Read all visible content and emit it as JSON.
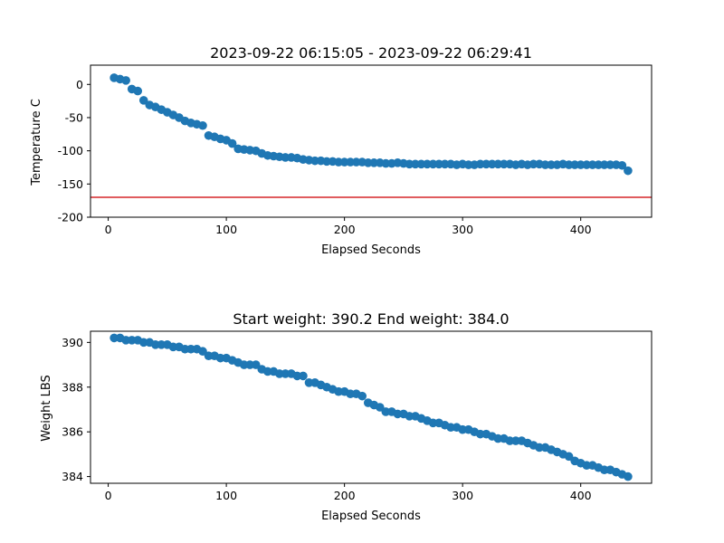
{
  "chart_data": [
    {
      "type": "scatter",
      "title": "2023-09-22 06:15:05 - 2023-09-22 06:29:41",
      "xlabel": "Elapsed Seconds",
      "ylabel": "Temperature C",
      "xlim": [
        -15,
        460
      ],
      "ylim": [
        -200,
        29
      ],
      "xticks": [
        0,
        100,
        200,
        300,
        400
      ],
      "yticks": [
        0,
        -50,
        -100,
        -150,
        -200
      ],
      "grid": false,
      "marker_color": "#1f77b4",
      "hline": {
        "y": -170,
        "color": "#d62728"
      },
      "x": [
        5,
        10,
        15,
        20,
        25,
        30,
        35,
        40,
        45,
        50,
        55,
        60,
        65,
        70,
        75,
        80,
        85,
        90,
        95,
        100,
        105,
        110,
        115,
        120,
        125,
        130,
        135,
        140,
        145,
        150,
        155,
        160,
        165,
        170,
        175,
        180,
        185,
        190,
        195,
        200,
        205,
        210,
        215,
        220,
        225,
        230,
        235,
        240,
        245,
        250,
        255,
        260,
        265,
        270,
        275,
        280,
        285,
        290,
        295,
        300,
        305,
        310,
        315,
        320,
        325,
        330,
        335,
        340,
        345,
        350,
        355,
        360,
        365,
        370,
        375,
        380,
        385,
        390,
        395,
        400,
        405,
        410,
        415,
        420,
        425,
        430,
        435,
        440
      ],
      "y": [
        10,
        8,
        6,
        -7,
        -10,
        -24,
        -31,
        -34,
        -38,
        -42,
        -46,
        -50,
        -55,
        -58,
        -60,
        -62,
        -77,
        -79,
        -82,
        -84,
        -89,
        -97,
        -98,
        -99,
        -100,
        -104,
        -107,
        -108,
        -109,
        -110,
        -110,
        -111,
        -113,
        -114,
        -115,
        -115,
        -116,
        -116,
        -117,
        -117,
        -117,
        -117,
        -117,
        -118,
        -118,
        -118,
        -119,
        -119,
        -118,
        -119,
        -120,
        -120,
        -120,
        -120,
        -120,
        -120,
        -120,
        -120,
        -121,
        -120,
        -121,
        -121,
        -120,
        -120,
        -120,
        -120,
        -120,
        -120,
        -121,
        -120,
        -121,
        -120,
        -120,
        -121,
        -121,
        -121,
        -120,
        -121,
        -121,
        -121,
        -121,
        -121,
        -121,
        -121,
        -121,
        -121,
        -122,
        -130
      ]
    },
    {
      "type": "scatter",
      "title": "Start weight: 390.2 End weight: 384.0",
      "xlabel": "Elapsed Seconds",
      "ylabel": "Weight LBS",
      "xlim": [
        -15,
        460
      ],
      "ylim": [
        383.7,
        390.5
      ],
      "xticks": [
        0,
        100,
        200,
        300,
        400
      ],
      "yticks": [
        384,
        386,
        388,
        390
      ],
      "grid": false,
      "marker_color": "#1f77b4",
      "x": [
        5,
        10,
        15,
        20,
        25,
        30,
        35,
        40,
        45,
        50,
        55,
        60,
        65,
        70,
        75,
        80,
        85,
        90,
        95,
        100,
        105,
        110,
        115,
        120,
        125,
        130,
        135,
        140,
        145,
        150,
        155,
        160,
        165,
        170,
        175,
        180,
        185,
        190,
        195,
        200,
        205,
        210,
        215,
        220,
        225,
        230,
        235,
        240,
        245,
        250,
        255,
        260,
        265,
        270,
        275,
        280,
        285,
        290,
        295,
        300,
        305,
        310,
        315,
        320,
        325,
        330,
        335,
        340,
        345,
        350,
        355,
        360,
        365,
        370,
        375,
        380,
        385,
        390,
        395,
        400,
        405,
        410,
        415,
        420,
        425,
        430,
        435,
        440
      ],
      "y": [
        390.2,
        390.2,
        390.1,
        390.1,
        390.1,
        390.0,
        390.0,
        389.9,
        389.9,
        389.9,
        389.8,
        389.8,
        389.7,
        389.7,
        389.7,
        389.6,
        389.4,
        389.4,
        389.3,
        389.3,
        389.2,
        389.1,
        389.0,
        389.0,
        389.0,
        388.8,
        388.7,
        388.7,
        388.6,
        388.6,
        388.6,
        388.5,
        388.5,
        388.2,
        388.2,
        388.1,
        388.0,
        387.9,
        387.8,
        387.8,
        387.7,
        387.7,
        387.6,
        387.3,
        387.2,
        387.1,
        386.9,
        386.9,
        386.8,
        386.8,
        386.7,
        386.7,
        386.6,
        386.5,
        386.4,
        386.4,
        386.3,
        386.2,
        386.2,
        386.1,
        386.1,
        386.0,
        385.9,
        385.9,
        385.8,
        385.7,
        385.7,
        385.6,
        385.6,
        385.6,
        385.5,
        385.4,
        385.3,
        385.3,
        385.2,
        385.1,
        385.0,
        384.9,
        384.7,
        384.6,
        384.5,
        384.5,
        384.4,
        384.3,
        384.3,
        384.2,
        384.1,
        384.0
      ]
    }
  ]
}
